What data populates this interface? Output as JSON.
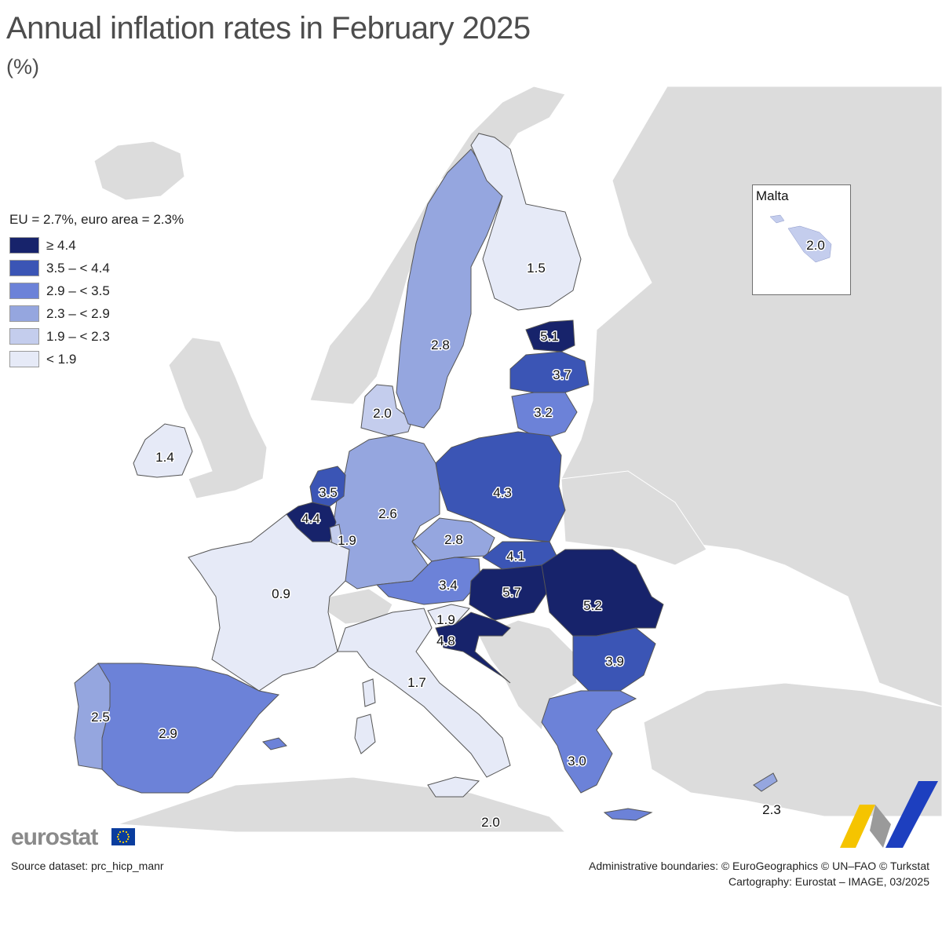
{
  "title": "Annual inflation rates in February 2025",
  "subtitle": "(%)",
  "legend": {
    "header": "EU = 2.7%, euro area = 2.3%",
    "items": [
      {
        "label": "≥ 4.4",
        "color": "#17236b"
      },
      {
        "label": "3.5 – < 4.4",
        "color": "#3b55b5"
      },
      {
        "label": "2.9 – < 3.5",
        "color": "#6c82d8"
      },
      {
        "label": "2.3 – < 2.9",
        "color": "#95a6df"
      },
      {
        "label": "1.9 – < 2.3",
        "color": "#c4cded"
      },
      {
        "label": "< 1.9",
        "color": "#e6eaf7"
      }
    ]
  },
  "countries": [
    {
      "code": "IE",
      "value": "1.4"
    },
    {
      "code": "DK",
      "value": "2.0"
    },
    {
      "code": "SE",
      "value": "2.8"
    },
    {
      "code": "FI",
      "value": "1.5"
    },
    {
      "code": "EE",
      "value": "5.1"
    },
    {
      "code": "LV",
      "value": "3.7"
    },
    {
      "code": "LT",
      "value": "3.2"
    },
    {
      "code": "PL",
      "value": "4.3"
    },
    {
      "code": "DE",
      "value": "2.6"
    },
    {
      "code": "NL",
      "value": "3.5"
    },
    {
      "code": "BE",
      "value": "4.4"
    },
    {
      "code": "LU",
      "value": "1.9"
    },
    {
      "code": "FR",
      "value": "0.9"
    },
    {
      "code": "CZ",
      "value": "2.8"
    },
    {
      "code": "SK",
      "value": "4.1"
    },
    {
      "code": "AT",
      "value": "3.4"
    },
    {
      "code": "HU",
      "value": "5.7"
    },
    {
      "code": "RO",
      "value": "5.2"
    },
    {
      "code": "SI",
      "value": "1.9"
    },
    {
      "code": "HR",
      "value": "4.8"
    },
    {
      "code": "BG",
      "value": "3.9"
    },
    {
      "code": "IT",
      "value": "1.7"
    },
    {
      "code": "ES",
      "value": "2.9"
    },
    {
      "code": "PT",
      "value": "2.5"
    },
    {
      "code": "EL",
      "value": "3.0"
    },
    {
      "code": "CY",
      "value": "2.3"
    },
    {
      "code": "MT_main",
      "value": "2.0"
    },
    {
      "code": "MT",
      "value": "2.0"
    }
  ],
  "inset": {
    "title": "Malta"
  },
  "colors": {
    "non_eu": "#dcdcdc",
    "sea": "#ffffff",
    "border": "#555555"
  },
  "footer": {
    "logo_text": "eurostat",
    "source": "Source dataset: prc_hicp_manr",
    "credit_line1": "Administrative boundaries: © EuroGeographics © UN–FAO © Turkstat",
    "credit_line2": "Cartography: Eurostat – IMAGE, 03/2025"
  }
}
